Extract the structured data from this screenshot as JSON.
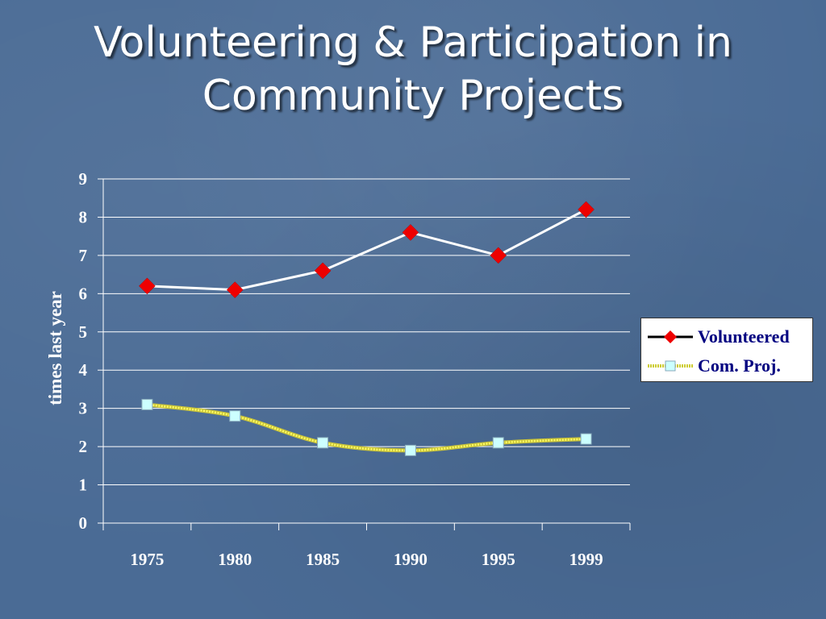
{
  "slide": {
    "title_line1": "Volunteering & Participation in",
    "title_line2": "Community Projects"
  },
  "chart_data": {
    "type": "line",
    "categories": [
      "1975",
      "1980",
      "1985",
      "1990",
      "1995",
      "1999"
    ],
    "ylabel": "times last year",
    "xlabel": "",
    "ylim": [
      0,
      9
    ],
    "yticks": [
      0,
      1,
      2,
      3,
      4,
      5,
      6,
      7,
      8,
      9
    ],
    "grid": true,
    "legend_position": "right",
    "series": [
      {
        "name": "Volunteered",
        "values": [
          6.2,
          6.1,
          6.6,
          7.6,
          7.0,
          8.2
        ],
        "line_color": "#ffffff",
        "marker": "diamond",
        "marker_color": "#ee0000"
      },
      {
        "name": "Com. Proj.",
        "values": [
          3.1,
          2.8,
          2.1,
          1.9,
          2.1,
          2.2
        ],
        "line_color": "#ffff66",
        "marker": "square",
        "marker_color": "#ccffff"
      }
    ]
  },
  "colors": {
    "background": "#4a6b95",
    "gridline": "#ffffff",
    "text": "#ffffff",
    "legend_text": "#000080"
  }
}
